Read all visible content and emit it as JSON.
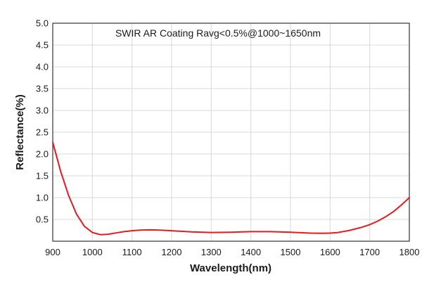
{
  "chart_data": {
    "type": "line",
    "title": "SWIR AR Coating Ravg<0.5%@1000~1650nm",
    "xlabel": "Wavelength(nm)",
    "ylabel": "Reflectance(%)",
    "xlim": [
      900,
      1800
    ],
    "ylim": [
      0,
      5
    ],
    "xticks": [
      900,
      1000,
      1100,
      1200,
      1300,
      1400,
      1500,
      1600,
      1700,
      1800
    ],
    "yticks": [
      "0.5",
      "1.0",
      "1.5",
      "2.0",
      "2.5",
      "3.0",
      "3.5",
      "4.0",
      "4.5",
      "5.0"
    ],
    "grid": true,
    "series": [
      {
        "color": "#e8191c",
        "x": [
          900,
          920,
          940,
          960,
          980,
          1000,
          1020,
          1040,
          1060,
          1080,
          1100,
          1120,
          1140,
          1160,
          1180,
          1200,
          1250,
          1300,
          1350,
          1400,
          1450,
          1500,
          1550,
          1580,
          1600,
          1620,
          1650,
          1680,
          1700,
          1720,
          1740,
          1760,
          1780,
          1800
        ],
        "y": [
          2.27,
          1.6,
          1.05,
          0.62,
          0.34,
          0.2,
          0.15,
          0.16,
          0.19,
          0.22,
          0.24,
          0.255,
          0.26,
          0.258,
          0.25,
          0.24,
          0.215,
          0.2,
          0.205,
          0.22,
          0.22,
          0.205,
          0.185,
          0.18,
          0.185,
          0.2,
          0.25,
          0.32,
          0.38,
          0.46,
          0.56,
          0.68,
          0.83,
          1.0
        ]
      }
    ]
  }
}
